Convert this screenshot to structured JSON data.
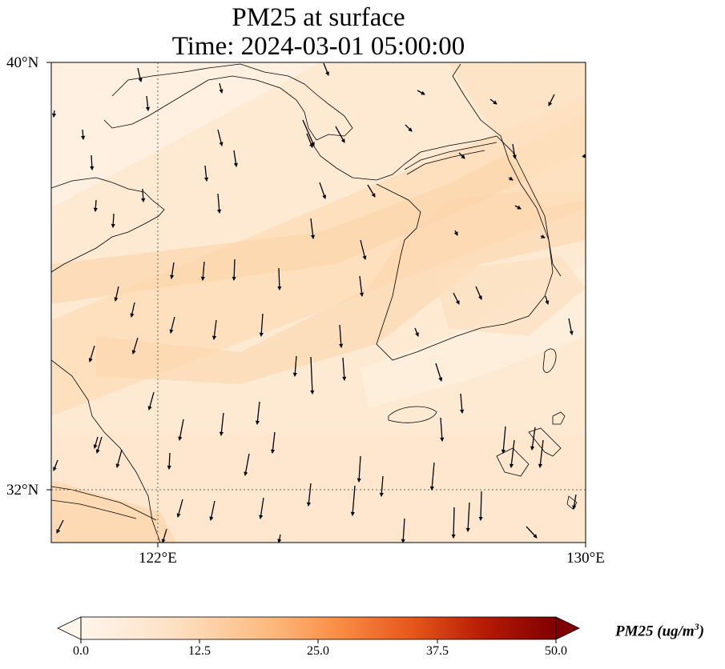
{
  "title": {
    "line1": "PM25 at surface",
    "line2": "Time: 2024-03-01 05:00:00"
  },
  "map": {
    "lat_labels": [
      "40°N",
      "32°N"
    ],
    "lon_labels": [
      "122°E",
      "130°E"
    ],
    "gridlines": "dotted at 122°E and 32°N"
  },
  "colorbar": {
    "ticks": [
      "0.0",
      "12.5",
      "25.0",
      "37.5",
      "50.0"
    ],
    "label_main": "PM25 (ug/m",
    "label_sup": "3",
    "label_end": ")",
    "colormap": [
      "#fff5eb",
      "#fdd9b4",
      "#fda762",
      "#e8531a",
      "#a30202",
      "#7f0000"
    ]
  }
}
